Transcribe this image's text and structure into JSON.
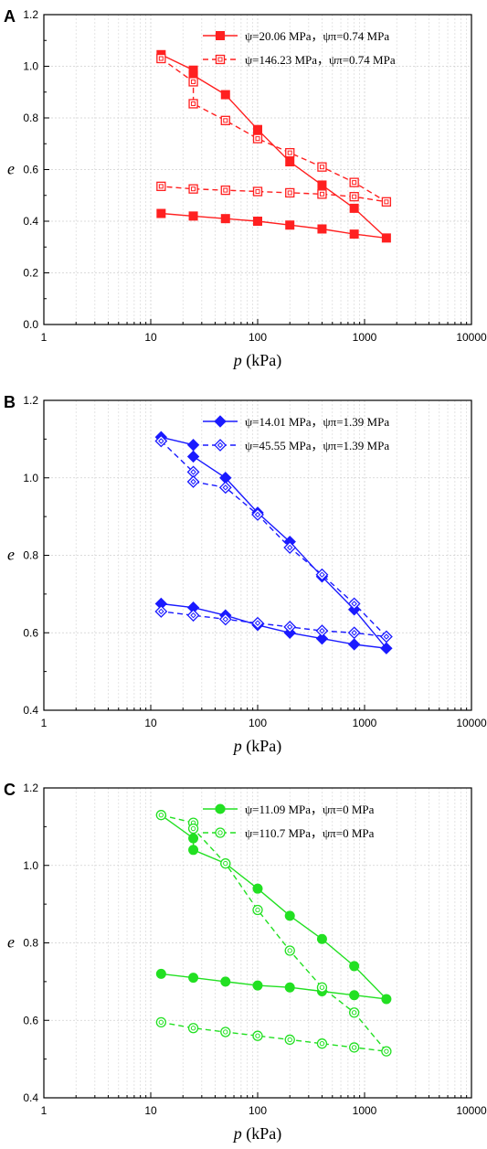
{
  "chart_data": [
    {
      "type": "line",
      "panel": "A",
      "xlabel": "p (kPa)",
      "ylabel": "e",
      "xscale": "log",
      "xlim": [
        1,
        10000
      ],
      "ylim": [
        0.0,
        1.2
      ],
      "xticks": [
        "1",
        "10",
        "100",
        "1000",
        "10000"
      ],
      "yticks": [
        "0.0",
        "0.2",
        "0.4",
        "0.6",
        "0.8",
        "1.0",
        "1.2"
      ],
      "grid": true,
      "legend_position": "top-right",
      "color": "#ff2020",
      "series": [
        {
          "name": "ψ=20.06 MPa，ψπ=0.74 MPa",
          "marker": "filled-square",
          "line": "solid",
          "x": [
            12.5,
            25,
            25,
            50,
            100,
            200,
            400,
            800,
            1600,
            800,
            400,
            200,
            100,
            50,
            25,
            12.5
          ],
          "y": [
            1.045,
            0.985,
            0.965,
            0.89,
            0.755,
            0.63,
            0.54,
            0.45,
            0.335,
            0.35,
            0.37,
            0.385,
            0.4,
            0.41,
            0.42,
            0.43
          ]
        },
        {
          "name": "ψ=146.23 MPa，ψπ=0.74 MPa",
          "marker": "open-square",
          "line": "dashed",
          "x": [
            12.5,
            25,
            25,
            50,
            100,
            200,
            400,
            800,
            1600,
            800,
            400,
            200,
            100,
            50,
            25,
            12.5
          ],
          "y": [
            1.03,
            0.94,
            0.855,
            0.79,
            0.72,
            0.665,
            0.61,
            0.55,
            0.475,
            0.495,
            0.505,
            0.51,
            0.515,
            0.52,
            0.525,
            0.535
          ]
        }
      ]
    },
    {
      "type": "line",
      "panel": "B",
      "xlabel": "p (kPa)",
      "ylabel": "e",
      "xscale": "log",
      "xlim": [
        1,
        10000
      ],
      "ylim": [
        0.4,
        1.2
      ],
      "xticks": [
        "1",
        "10",
        "100",
        "1000",
        "10000"
      ],
      "yticks": [
        "0.4",
        "0.6",
        "0.8",
        "1.0",
        "1.2"
      ],
      "grid": true,
      "legend_position": "top-right",
      "color": "#1a1aff",
      "series": [
        {
          "name": "ψ=14.01 MPa，ψπ=1.39 MPa",
          "marker": "filled-diamond",
          "line": "solid",
          "x": [
            12.5,
            25,
            25,
            50,
            100,
            200,
            400,
            800,
            1600,
            800,
            400,
            200,
            100,
            50,
            25,
            12.5
          ],
          "y": [
            1.105,
            1.085,
            1.055,
            1.0,
            0.91,
            0.835,
            0.745,
            0.66,
            0.56,
            0.57,
            0.585,
            0.6,
            0.62,
            0.645,
            0.665,
            0.675
          ]
        },
        {
          "name": "ψ=45.55 MPa，ψπ=1.39 MPa",
          "marker": "open-diamond",
          "line": "dashed",
          "x": [
            12.5,
            25,
            25,
            50,
            100,
            200,
            400,
            800,
            1600,
            800,
            400,
            200,
            100,
            50,
            25,
            12.5
          ],
          "y": [
            1.095,
            1.015,
            0.99,
            0.975,
            0.905,
            0.82,
            0.75,
            0.675,
            0.59,
            0.6,
            0.605,
            0.615,
            0.625,
            0.635,
            0.645,
            0.655
          ]
        }
      ]
    },
    {
      "type": "line",
      "panel": "C",
      "xlabel": "p (kPa)",
      "ylabel": "e",
      "xscale": "log",
      "xlim": [
        1,
        10000
      ],
      "ylim": [
        0.4,
        1.2
      ],
      "xticks": [
        "1",
        "10",
        "100",
        "1000",
        "10000"
      ],
      "yticks": [
        "0.4",
        "0.6",
        "0.8",
        "1.0",
        "1.2"
      ],
      "grid": true,
      "legend_position": "top-right",
      "color": "#22e022",
      "series": [
        {
          "name": "ψ=11.09 MPa，ψπ=0 MPa",
          "marker": "filled-circle",
          "line": "solid",
          "x": [
            12.5,
            25,
            25,
            50,
            100,
            200,
            400,
            800,
            1600,
            800,
            400,
            200,
            100,
            50,
            25,
            12.5
          ],
          "y": [
            1.13,
            1.07,
            1.04,
            1.005,
            0.94,
            0.87,
            0.81,
            0.74,
            0.655,
            0.665,
            0.675,
            0.685,
            0.69,
            0.7,
            0.71,
            0.72
          ]
        },
        {
          "name": "ψ=110.7 MPa，ψπ=0 MPa",
          "marker": "open-circle",
          "line": "dashed",
          "x": [
            12.5,
            25,
            25,
            50,
            100,
            200,
            400,
            800,
            1600,
            800,
            400,
            200,
            100,
            50,
            25,
            12.5
          ],
          "y": [
            1.13,
            1.11,
            1.095,
            1.005,
            0.885,
            0.78,
            0.685,
            0.62,
            0.52,
            0.53,
            0.54,
            0.55,
            0.56,
            0.57,
            0.58,
            0.595
          ]
        }
      ]
    }
  ]
}
